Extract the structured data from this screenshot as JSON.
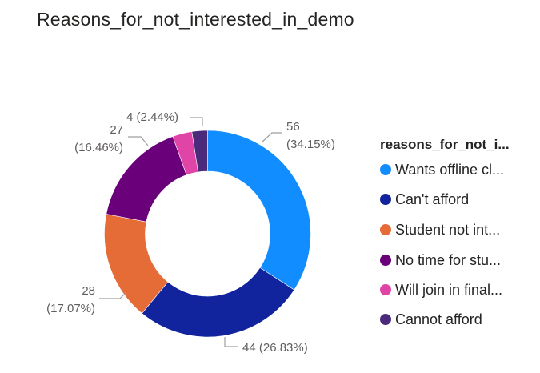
{
  "title": "Reasons_for_not_interested_in_demo",
  "legend": {
    "title": "reasons_for_not_i...",
    "items": [
      {
        "label": "Wants offline cl...",
        "color": "#118DFF"
      },
      {
        "label": "Can't afford",
        "color": "#12239E"
      },
      {
        "label": "Student not int...",
        "color": "#E66C37"
      },
      {
        "label": "No time for stu...",
        "color": "#6B007B"
      },
      {
        "label": "Will join in final...",
        "color": "#E044A7"
      },
      {
        "label": "Cannot afford",
        "color": "#4B2A7B"
      }
    ]
  },
  "labels": {
    "wants_offline": {
      "value": "56",
      "pct": "(34.15%)"
    },
    "cant_afford": {
      "text": "44 (26.83%)"
    },
    "student_not_int": {
      "value": "28",
      "pct": "(17.07%)"
    },
    "no_time": {
      "value": "27",
      "pct": "(16.46%)"
    },
    "cannot_afford": {
      "text": "4 (2.44%)"
    }
  },
  "chart_data": {
    "type": "pie",
    "subtype": "donut",
    "title": "Reasons_for_not_interested_in_demo",
    "legend_title": "reasons_for_not_i...",
    "legend_position": "right",
    "categories": [
      "Wants offline cl...",
      "Can't afford",
      "Student not int...",
      "No time for stu...",
      "Will join in final...",
      "Cannot afford"
    ],
    "values": [
      56,
      44,
      28,
      27,
      5,
      4
    ],
    "percentages": [
      34.15,
      26.83,
      17.07,
      16.46,
      3.05,
      2.44
    ],
    "colors": [
      "#118DFF",
      "#12239E",
      "#E66C37",
      "#6B007B",
      "#E044A7",
      "#4B2A7B"
    ],
    "data_labels": [
      "56 (34.15%)",
      "44 (26.83%)",
      "28 (17.07%)",
      "27 (16.46%)",
      "",
      "4 (2.44%)"
    ]
  }
}
